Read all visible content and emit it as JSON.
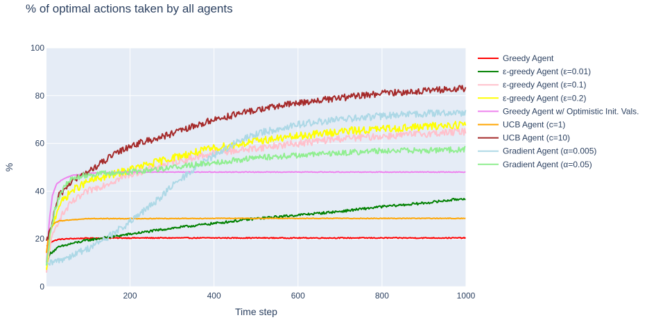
{
  "chart_data": {
    "type": "line",
    "title": "% of optimal actions taken by all agents",
    "xlabel": "Time step",
    "ylabel": "%",
    "xlim": [
      1,
      1000
    ],
    "ylim": [
      0,
      100
    ],
    "x_ticks": [
      200,
      400,
      600,
      800,
      1000
    ],
    "y_ticks": [
      0,
      20,
      40,
      60,
      80,
      100
    ],
    "grid": true,
    "legend": "right",
    "background": "#e5ecf6",
    "series": [
      {
        "name": "Greedy Agent",
        "color": "#ff0000",
        "x": [
          1,
          5,
          15,
          30,
          60,
          100,
          200,
          400,
          600,
          800,
          1000
        ],
        "y": [
          17,
          17.5,
          19,
          19.8,
          20.1,
          20.3,
          20.4,
          20.4,
          20.4,
          20.4,
          20.4
        ],
        "noise": 0.2
      },
      {
        "name": "ε-greedy Agent (ε=0.01)",
        "color": "#008000",
        "x": [
          1,
          10,
          30,
          60,
          100,
          200,
          300,
          400,
          500,
          600,
          700,
          800,
          900,
          1000
        ],
        "y": [
          9,
          14,
          16.5,
          18,
          19.5,
          22,
          24.5,
          26.5,
          28.5,
          30,
          31.5,
          33.5,
          35,
          37
        ],
        "noise": 0.5
      },
      {
        "name": "ε-greedy Agent (ε=0.1)",
        "color": "#ffc0cb",
        "x": [
          1,
          10,
          30,
          60,
          100,
          200,
          300,
          400,
          500,
          600,
          700,
          800,
          900,
          1000
        ],
        "y": [
          5,
          18,
          28,
          35,
          40,
          47,
          52,
          56,
          58,
          60,
          62,
          63,
          64,
          65
        ],
        "noise": 1.5
      },
      {
        "name": "ε-greedy Agent (ε=0.2)",
        "color": "#ffff00",
        "x": [
          1,
          10,
          30,
          60,
          100,
          200,
          300,
          400,
          500,
          600,
          700,
          800,
          900,
          1000
        ],
        "y": [
          6,
          22,
          34,
          40,
          44,
          49,
          54,
          58,
          61,
          63,
          65,
          66,
          67,
          68
        ],
        "noise": 1.6
      },
      {
        "name": "Greedy Agent w/ Optimistic Init. Vals.",
        "color": "#ee82ee",
        "x": [
          1,
          8,
          15,
          25,
          40,
          60,
          100,
          200,
          400,
          600,
          800,
          1000
        ],
        "y": [
          10,
          28,
          38,
          43,
          45,
          46.5,
          47.5,
          48,
          48,
          48,
          48,
          48
        ],
        "noise": 0.15
      },
      {
        "name": "UCB Agent (c=1)",
        "color": "#ffa500",
        "x": [
          1,
          5,
          15,
          30,
          60,
          100,
          200,
          400,
          600,
          800,
          1000
        ],
        "y": [
          14,
          20,
          26,
          27.5,
          28,
          28.5,
          28.5,
          28.6,
          28.6,
          28.6,
          28.6
        ],
        "noise": 0.15
      },
      {
        "name": "UCB Agent (c=10)",
        "color": "#a52a2a",
        "x": [
          1,
          10,
          30,
          60,
          100,
          150,
          200,
          300,
          400,
          500,
          600,
          700,
          800,
          900,
          1000
        ],
        "y": [
          18,
          24,
          38,
          44,
          48,
          54,
          59,
          64,
          70,
          74,
          77,
          79,
          81,
          82,
          83
        ],
        "noise": 1.4
      },
      {
        "name": "Gradient Agent (α=0.005)",
        "color": "#add8e6",
        "x": [
          1,
          30,
          60,
          100,
          150,
          200,
          250,
          300,
          350,
          400,
          450,
          500,
          600,
          700,
          800,
          900,
          1000
        ],
        "y": [
          9,
          11,
          13,
          16,
          21,
          27,
          34,
          42,
          49,
          55,
          60,
          64,
          68,
          70,
          71.5,
          72.5,
          73
        ],
        "noise": 1.5
      },
      {
        "name": "Gradient Agent (α=0.05)",
        "color": "#90ee90",
        "x": [
          1,
          10,
          20,
          40,
          60,
          100,
          200,
          300,
          400,
          500,
          600,
          700,
          800,
          900,
          1000
        ],
        "y": [
          10,
          22,
          32,
          41,
          45,
          47,
          48,
          50,
          52,
          54,
          55,
          56,
          57,
          57,
          57.5
        ],
        "noise": 1.2
      }
    ]
  }
}
